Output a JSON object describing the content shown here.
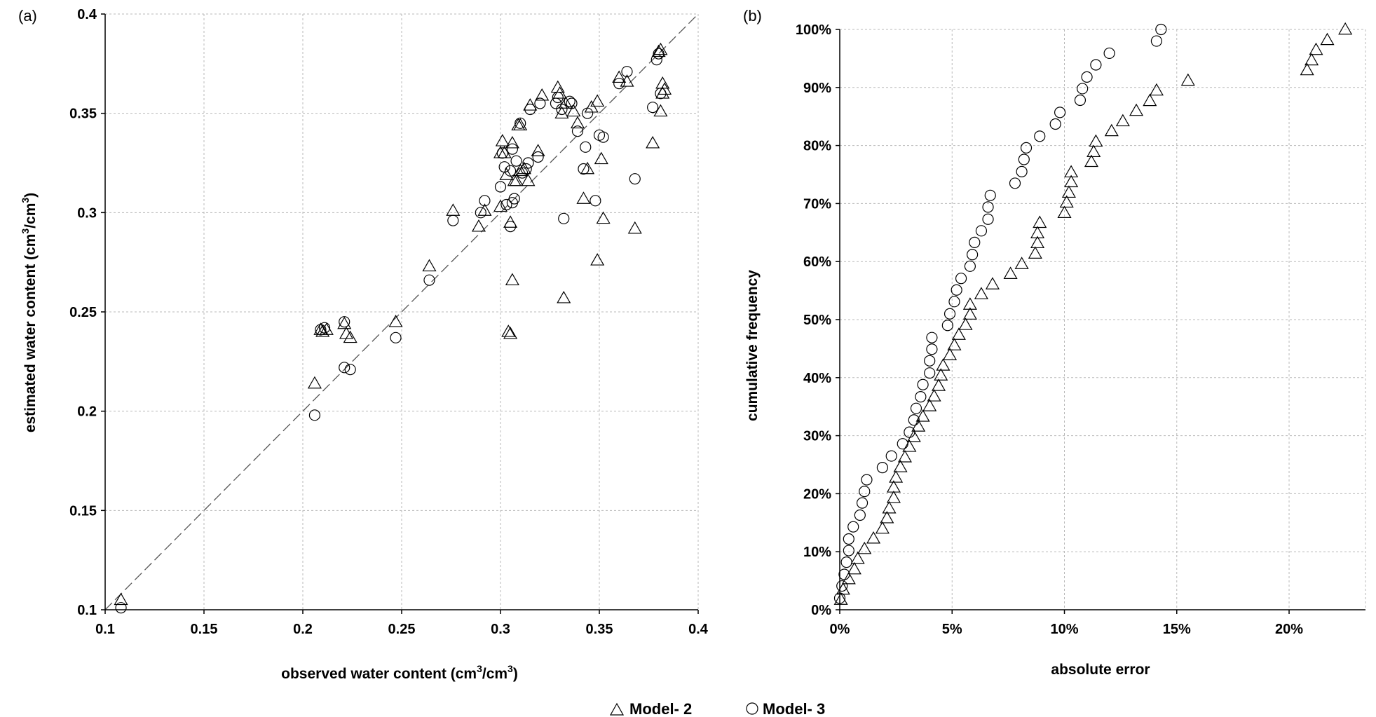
{
  "legend": [
    {
      "symbol": "triangle",
      "label": "Model- 2"
    },
    {
      "symbol": "circle",
      "label": "Model- 3"
    }
  ],
  "chart_data": [
    {
      "type": "scatter",
      "panel_label": "(a)",
      "xlabel": "observed water content (cm",
      "xlabel_sup1": "3",
      "xlabel_mid": "/cm",
      "xlabel_sup2": "3",
      "xlabel_end": ")",
      "ylabel": "estimated water content (cm",
      "ylabel_sup1": "3",
      "ylabel_mid": "/cm",
      "ylabel_sup2": "3",
      "ylabel_end": ")",
      "xlim": [
        0.1,
        0.4
      ],
      "ylim": [
        0.1,
        0.4
      ],
      "xticks": [
        0.1,
        0.15,
        0.2,
        0.25,
        0.3,
        0.35,
        0.4
      ],
      "yticks": [
        0.1,
        0.15,
        0.2,
        0.25,
        0.3,
        0.35,
        0.4
      ],
      "xtick_labels": [
        "0.1",
        "0.15",
        "0.2",
        "0.25",
        "0.3",
        "0.35",
        "0.4"
      ],
      "ytick_labels": [
        "0.1",
        "0.15",
        "0.2",
        "0.25",
        "0.3",
        "0.35",
        "0.4"
      ],
      "grid": true,
      "reference_line": "1:1 dashed",
      "series": [
        {
          "name": "Model- 2",
          "marker": "triangle",
          "points": [
            [
              0.108,
              0.105
            ],
            [
              0.206,
              0.214
            ],
            [
              0.209,
              0.241
            ],
            [
              0.21,
              0.24
            ],
            [
              0.212,
              0.241
            ],
            [
              0.221,
              0.244
            ],
            [
              0.222,
              0.239
            ],
            [
              0.224,
              0.237
            ],
            [
              0.247,
              0.245
            ],
            [
              0.264,
              0.273
            ],
            [
              0.276,
              0.301
            ],
            [
              0.289,
              0.293
            ],
            [
              0.292,
              0.301
            ],
            [
              0.3,
              0.303
            ],
            [
              0.3,
              0.33
            ],
            [
              0.301,
              0.336
            ],
            [
              0.302,
              0.33
            ],
            [
              0.303,
              0.319
            ],
            [
              0.304,
              0.24
            ],
            [
              0.305,
              0.239
            ],
            [
              0.305,
              0.295
            ],
            [
              0.306,
              0.266
            ],
            [
              0.306,
              0.335
            ],
            [
              0.307,
              0.316
            ],
            [
              0.308,
              0.316
            ],
            [
              0.309,
              0.344
            ],
            [
              0.31,
              0.344
            ],
            [
              0.31,
              0.321
            ],
            [
              0.312,
              0.322
            ],
            [
              0.314,
              0.316
            ],
            [
              0.315,
              0.354
            ],
            [
              0.319,
              0.331
            ],
            [
              0.321,
              0.359
            ],
            [
              0.329,
              0.363
            ],
            [
              0.33,
              0.36
            ],
            [
              0.331,
              0.35
            ],
            [
              0.332,
              0.257
            ],
            [
              0.333,
              0.355
            ],
            [
              0.337,
              0.351
            ],
            [
              0.339,
              0.345
            ],
            [
              0.342,
              0.307
            ],
            [
              0.344,
              0.322
            ],
            [
              0.346,
              0.353
            ],
            [
              0.349,
              0.276
            ],
            [
              0.349,
              0.356
            ],
            [
              0.351,
              0.327
            ],
            [
              0.352,
              0.297
            ],
            [
              0.36,
              0.368
            ],
            [
              0.364,
              0.366
            ],
            [
              0.368,
              0.292
            ],
            [
              0.377,
              0.335
            ],
            [
              0.38,
              0.381
            ],
            [
              0.381,
              0.382
            ],
            [
              0.381,
              0.351
            ],
            [
              0.382,
              0.365
            ],
            [
              0.382,
              0.36
            ],
            [
              0.383,
              0.362
            ]
          ]
        },
        {
          "name": "Model- 3",
          "marker": "circle",
          "points": [
            [
              0.108,
              0.101
            ],
            [
              0.206,
              0.198
            ],
            [
              0.209,
              0.241
            ],
            [
              0.211,
              0.242
            ],
            [
              0.221,
              0.245
            ],
            [
              0.221,
              0.222
            ],
            [
              0.224,
              0.221
            ],
            [
              0.247,
              0.237
            ],
            [
              0.264,
              0.266
            ],
            [
              0.276,
              0.296
            ],
            [
              0.29,
              0.3
            ],
            [
              0.292,
              0.306
            ],
            [
              0.3,
              0.313
            ],
            [
              0.301,
              0.33
            ],
            [
              0.302,
              0.323
            ],
            [
              0.303,
              0.304
            ],
            [
              0.305,
              0.321
            ],
            [
              0.305,
              0.293
            ],
            [
              0.306,
              0.305
            ],
            [
              0.306,
              0.332
            ],
            [
              0.307,
              0.307
            ],
            [
              0.308,
              0.326
            ],
            [
              0.31,
              0.345
            ],
            [
              0.311,
              0.32
            ],
            [
              0.313,
              0.322
            ],
            [
              0.314,
              0.325
            ],
            [
              0.315,
              0.352
            ],
            [
              0.319,
              0.328
            ],
            [
              0.32,
              0.355
            ],
            [
              0.328,
              0.355
            ],
            [
              0.329,
              0.358
            ],
            [
              0.331,
              0.352
            ],
            [
              0.332,
              0.297
            ],
            [
              0.335,
              0.356
            ],
            [
              0.336,
              0.355
            ],
            [
              0.339,
              0.341
            ],
            [
              0.342,
              0.322
            ],
            [
              0.343,
              0.333
            ],
            [
              0.344,
              0.35
            ],
            [
              0.348,
              0.306
            ],
            [
              0.35,
              0.339
            ],
            [
              0.352,
              0.338
            ],
            [
              0.36,
              0.365
            ],
            [
              0.364,
              0.371
            ],
            [
              0.368,
              0.317
            ],
            [
              0.377,
              0.353
            ],
            [
              0.379,
              0.377
            ],
            [
              0.38,
              0.38
            ],
            [
              0.381,
              0.36
            ]
          ]
        }
      ]
    },
    {
      "type": "scatter",
      "panel_label": "(b)",
      "xlabel": "absolute error",
      "ylabel": "cumulative frequency",
      "xlim": [
        0,
        0.234
      ],
      "ylim": [
        0,
        1
      ],
      "xticks": [
        0,
        0.05,
        0.1,
        0.15,
        0.2
      ],
      "xtick_labels": [
        "0%",
        "5%",
        "10%",
        "15%",
        "20%"
      ],
      "yticks": [
        0,
        0.1,
        0.2,
        0.3,
        0.4,
        0.5,
        0.6,
        0.7,
        0.8,
        0.9,
        1.0
      ],
      "ytick_labels": [
        "0%",
        "10%",
        "20%",
        "30%",
        "40%",
        "50%",
        "60%",
        "70%",
        "80%",
        "90%",
        "100%"
      ],
      "grid": true,
      "series": [
        {
          "name": "Model- 2",
          "marker": "triangle",
          "points": [
            [
              0.0005,
              0.0175
            ],
            [
              0.0015,
              0.035
            ],
            [
              0.004,
              0.053
            ],
            [
              0.0065,
              0.07
            ],
            [
              0.008,
              0.088
            ],
            [
              0.011,
              0.105
            ],
            [
              0.015,
              0.123
            ],
            [
              0.019,
              0.14
            ],
            [
              0.021,
              0.158
            ],
            [
              0.022,
              0.175
            ],
            [
              0.024,
              0.193
            ],
            [
              0.024,
              0.211
            ],
            [
              0.025,
              0.228
            ],
            [
              0.027,
              0.246
            ],
            [
              0.029,
              0.263
            ],
            [
              0.031,
              0.281
            ],
            [
              0.033,
              0.298
            ],
            [
              0.035,
              0.316
            ],
            [
              0.037,
              0.333
            ],
            [
              0.04,
              0.351
            ],
            [
              0.042,
              0.368
            ],
            [
              0.044,
              0.386
            ],
            [
              0.045,
              0.404
            ],
            [
              0.046,
              0.421
            ],
            [
              0.049,
              0.439
            ],
            [
              0.051,
              0.456
            ],
            [
              0.053,
              0.474
            ],
            [
              0.056,
              0.491
            ],
            [
              0.058,
              0.509
            ],
            [
              0.058,
              0.526
            ],
            [
              0.063,
              0.544
            ],
            [
              0.068,
              0.561
            ],
            [
              0.076,
              0.579
            ],
            [
              0.081,
              0.596
            ],
            [
              0.087,
              0.614
            ],
            [
              0.088,
              0.632
            ],
            [
              0.088,
              0.649
            ],
            [
              0.089,
              0.667
            ],
            [
              0.1,
              0.684
            ],
            [
              0.101,
              0.702
            ],
            [
              0.102,
              0.719
            ],
            [
              0.103,
              0.737
            ],
            [
              0.103,
              0.754
            ],
            [
              0.112,
              0.772
            ],
            [
              0.113,
              0.789
            ],
            [
              0.114,
              0.807
            ],
            [
              0.121,
              0.825
            ],
            [
              0.126,
              0.842
            ],
            [
              0.132,
              0.86
            ],
            [
              0.138,
              0.877
            ],
            [
              0.141,
              0.895
            ],
            [
              0.155,
              0.912
            ],
            [
              0.208,
              0.93
            ],
            [
              0.21,
              0.947
            ],
            [
              0.212,
              0.965
            ],
            [
              0.217,
              0.982
            ],
            [
              0.225,
              1.0
            ]
          ]
        },
        {
          "name": "Model- 3",
          "marker": "circle",
          "points": [
            [
              0.0,
              0.02
            ],
            [
              0.001,
              0.041
            ],
            [
              0.002,
              0.061
            ],
            [
              0.003,
              0.082
            ],
            [
              0.004,
              0.102
            ],
            [
              0.004,
              0.122
            ],
            [
              0.006,
              0.143
            ],
            [
              0.009,
              0.163
            ],
            [
              0.01,
              0.184
            ],
            [
              0.011,
              0.204
            ],
            [
              0.012,
              0.224
            ],
            [
              0.019,
              0.245
            ],
            [
              0.023,
              0.265
            ],
            [
              0.028,
              0.286
            ],
            [
              0.031,
              0.306
            ],
            [
              0.033,
              0.327
            ],
            [
              0.034,
              0.347
            ],
            [
              0.036,
              0.367
            ],
            [
              0.037,
              0.388
            ],
            [
              0.04,
              0.408
            ],
            [
              0.04,
              0.429
            ],
            [
              0.041,
              0.449
            ],
            [
              0.041,
              0.469
            ],
            [
              0.048,
              0.49
            ],
            [
              0.049,
              0.51
            ],
            [
              0.051,
              0.531
            ],
            [
              0.052,
              0.551
            ],
            [
              0.054,
              0.571
            ],
            [
              0.058,
              0.592
            ],
            [
              0.059,
              0.612
            ],
            [
              0.06,
              0.633
            ],
            [
              0.063,
              0.653
            ],
            [
              0.066,
              0.673
            ],
            [
              0.066,
              0.694
            ],
            [
              0.067,
              0.714
            ],
            [
              0.078,
              0.735
            ],
            [
              0.081,
              0.755
            ],
            [
              0.082,
              0.776
            ],
            [
              0.083,
              0.796
            ],
            [
              0.089,
              0.816
            ],
            [
              0.096,
              0.837
            ],
            [
              0.098,
              0.857
            ],
            [
              0.107,
              0.878
            ],
            [
              0.108,
              0.898
            ],
            [
              0.11,
              0.918
            ],
            [
              0.114,
              0.939
            ],
            [
              0.12,
              0.959
            ],
            [
              0.141,
              0.98
            ],
            [
              0.143,
              1.0
            ]
          ]
        }
      ]
    }
  ]
}
